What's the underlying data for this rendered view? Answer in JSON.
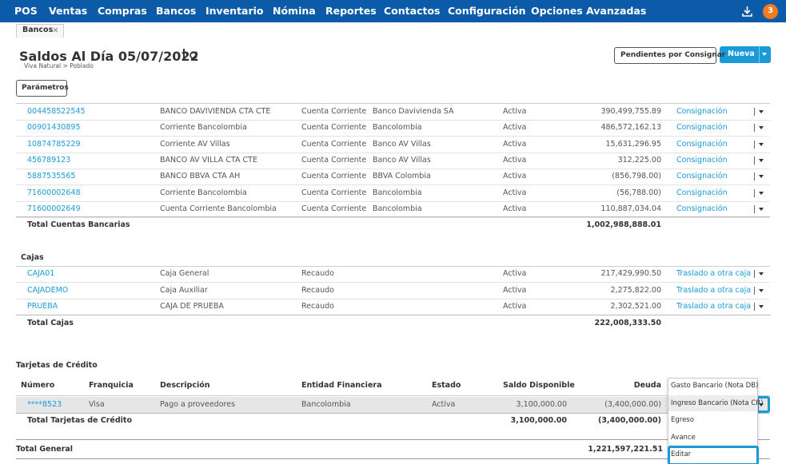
{
  "nav": {
    "items": [
      "POS",
      "Ventas",
      "Compras",
      "Bancos",
      "Inventario",
      "Nómina",
      "Reportes",
      "Contactos",
      "Configuración",
      "Opciones Avanzadas"
    ],
    "badge": "3"
  },
  "tab": "Bancos",
  "header": {
    "title": "Saldos Al Día 05/07/2022",
    "breadcrumb": "Viva Natural > Poblado",
    "buttons": [
      "Pendientes por Consignar",
      "Nueva"
    ]
  },
  "parameters_button": "Parámetros",
  "bank_accounts": {
    "rows": [
      [
        "004458522545",
        "BANCO DAVIVIENDA CTA CTE",
        "Cuenta Corriente",
        "Banco Davivienda SA",
        "Activa",
        "390,499,755.89",
        "Consignación"
      ],
      [
        "00901430895",
        "Corriente Bancolombia",
        "Cuenta Corriente",
        "Bancolombia",
        "Activa",
        "486,572,162.13",
        "Consignación"
      ],
      [
        "10874785229",
        "Corriente AV Villas",
        "Cuenta Corriente",
        "Banco AV Villas",
        "Activa",
        "15,631,296.95",
        "Consignación"
      ],
      [
        "456789123",
        "BANCO AV VILLA CTA CTE",
        "Cuenta Corriente",
        "Banco AV Villas",
        "Activa",
        "312,225.00",
        "Consignación"
      ],
      [
        "5887535565",
        "BANCO BBVA CTA AH",
        "Cuenta Corriente",
        "BBVA Colombia",
        "Activa",
        "(856,798.00)",
        "Consignación"
      ],
      [
        "71600002648",
        "Corriente Bancolombia",
        "Cuenta Corriente",
        "Bancolombia",
        "Activa",
        "(56,788.00)",
        "Consignación"
      ],
      [
        "71600002649",
        "Cuenta Corriente Bancolombia",
        "Cuenta Corriente",
        "Bancolombia",
        "Activa",
        "110,887,034.04",
        "Consignación"
      ]
    ],
    "total_label": "Total Cuentas Bancarias",
    "total": "1,002,988,888.01"
  },
  "cash": {
    "title": "Cajas",
    "rows": [
      [
        "CAJA01",
        "Caja General",
        "Recaudo",
        "Activa",
        "217,429,990.50",
        "Traslado a otra caja"
      ],
      [
        "CAJADEMO",
        "Caja Auxiliar",
        "Recaudo",
        "Activa",
        "2,275,822.00",
        "Traslado a otra caja"
      ],
      [
        "PRUEBA",
        "CAJA DE PRUEBA",
        "Recaudo",
        "Activa",
        "2,302,521.00",
        "Traslado a otra caja"
      ]
    ],
    "total_label": "Total Cajas",
    "total": "222,008,333.50"
  },
  "credit_cards": {
    "title": "Tarjetas de Crédito",
    "headers": [
      "Número",
      "Franquicia",
      "Descripción",
      "Entidad Financiera",
      "Estado",
      "Saldo Disponible",
      "Deuda"
    ],
    "rows": [
      [
        "****8523",
        "Visa",
        "Pago a proveedores",
        "Bancolombia",
        "Activa",
        "3,100,000.00",
        "(3,400,000.00)"
      ]
    ],
    "total_label": "Total Tarjetas de Crédito",
    "totals": [
      "3,100,000.00",
      "(3,400,000.00)"
    ]
  },
  "grand_total": {
    "label": "Total General",
    "value": "1,221,597,221.51"
  },
  "dropdown": {
    "items": [
      "Gasto Bancario (Nota DB)",
      "Ingreso Bancario (Nota CR)",
      "Egreso",
      "Avance",
      "Editar"
    ]
  }
}
